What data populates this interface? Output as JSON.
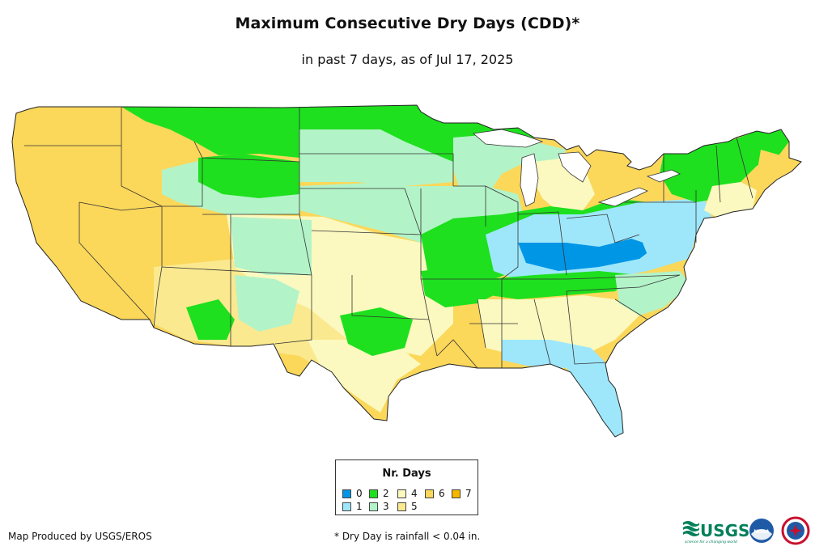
{
  "header": {
    "title": "Maximum Consecutive Dry Days (CDD)*",
    "subtitle": "in past 7 days, as of Jul 17, 2025"
  },
  "legend": {
    "title": "Nr. Days",
    "items": [
      {
        "label": "0",
        "color": "#0096e6"
      },
      {
        "label": "1",
        "color": "#9ee7fb"
      },
      {
        "label": "2",
        "color": "#1ee01e"
      },
      {
        "label": "3",
        "color": "#b3f3c8"
      },
      {
        "label": "4",
        "color": "#fbf9bf"
      },
      {
        "label": "5",
        "color": "#fbe98f"
      },
      {
        "label": "6",
        "color": "#fbd75a"
      },
      {
        "label": "7",
        "color": "#f5b800"
      }
    ]
  },
  "footer": {
    "credit": "Map Produced by USGS/EROS",
    "footnote": "* Dry Day is rainfall < 0.04 in.",
    "usgs_logo_text": "USGS",
    "usgs_tagline": "science for a changing world",
    "noaa_logo_text": "NOAA"
  }
}
